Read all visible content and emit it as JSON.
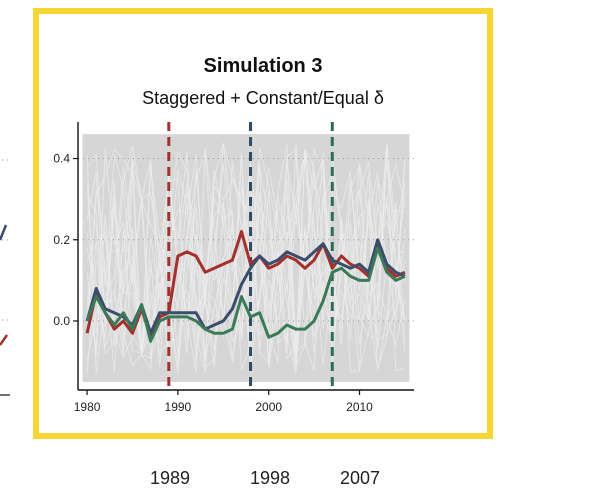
{
  "chart_data": {
    "type": "line",
    "title": "Simulation 3",
    "subtitle": "Staggered + Constant/Equal δ",
    "xlabel": "",
    "ylabel": "",
    "xlim": [
      1979,
      2016
    ],
    "ylim": [
      -0.17,
      0.49
    ],
    "x_ticks": [
      1980,
      1990,
      2000,
      2010
    ],
    "y_ticks": [
      0.0,
      0.2,
      0.4
    ],
    "y_tick_labels": [
      "0.0",
      "0.2",
      "0.4"
    ],
    "grid": "horizontal dotted",
    "background_band": {
      "y_low": -0.15,
      "y_high": 0.46,
      "color": "#d2d2d2"
    },
    "treatment_years": [
      {
        "year": 1989,
        "color": "#a3302c"
      },
      {
        "year": 1998,
        "color": "#2f4a63"
      },
      {
        "year": 2007,
        "color": "#2f6b57"
      }
    ],
    "x": [
      1980,
      1981,
      1982,
      1983,
      1984,
      1985,
      1986,
      1987,
      1988,
      1989,
      1990,
      1991,
      1992,
      1993,
      1994,
      1995,
      1996,
      1997,
      1998,
      1999,
      2000,
      2001,
      2002,
      2003,
      2004,
      2005,
      2006,
      2007,
      2008,
      2009,
      2010,
      2011,
      2012,
      2013,
      2014,
      2015
    ],
    "series": [
      {
        "color": "#a3302c",
        "values": [
          -0.03,
          0.07,
          0.02,
          -0.02,
          0.0,
          -0.03,
          0.03,
          -0.04,
          0.01,
          0.02,
          0.16,
          0.17,
          0.16,
          0.12,
          0.13,
          0.14,
          0.15,
          0.22,
          0.14,
          0.16,
          0.13,
          0.14,
          0.16,
          0.15,
          0.13,
          0.15,
          0.19,
          0.13,
          0.16,
          0.14,
          0.13,
          0.11,
          0.19,
          0.13,
          0.11,
          0.12
        ]
      },
      {
        "color": "#3a4d6c",
        "values": [
          0.0,
          0.08,
          0.03,
          0.02,
          0.01,
          -0.01,
          0.04,
          -0.03,
          0.02,
          0.02,
          0.02,
          0.02,
          0.02,
          -0.02,
          -0.01,
          0.0,
          0.03,
          0.09,
          0.13,
          0.16,
          0.14,
          0.15,
          0.17,
          0.16,
          0.15,
          0.17,
          0.19,
          0.15,
          0.14,
          0.13,
          0.14,
          0.12,
          0.2,
          0.14,
          0.12,
          0.11
        ]
      },
      {
        "color": "#3b7a56",
        "values": [
          0.0,
          0.06,
          0.02,
          -0.01,
          0.02,
          -0.02,
          0.04,
          -0.05,
          0.0,
          0.01,
          0.01,
          0.01,
          0.0,
          -0.02,
          -0.03,
          -0.03,
          -0.02,
          0.06,
          0.01,
          0.02,
          -0.04,
          -0.03,
          -0.01,
          -0.02,
          -0.02,
          0.0,
          0.05,
          0.12,
          0.13,
          0.11,
          0.1,
          0.1,
          0.18,
          0.12,
          0.1,
          0.11
        ]
      }
    ]
  },
  "legend_peek": {
    "items": [
      "1989",
      "1998",
      "2007"
    ]
  }
}
